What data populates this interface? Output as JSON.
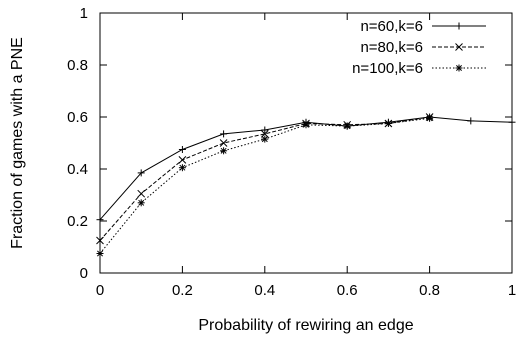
{
  "chart_data": {
    "type": "line",
    "title": "",
    "xlabel": "Probability of rewiring an edge",
    "ylabel": "Fraction of games with a PNE",
    "xlim": [
      0,
      1
    ],
    "ylim": [
      0,
      1
    ],
    "xticks": [
      0,
      0.2,
      0.4,
      0.6,
      0.8,
      1
    ],
    "xtick_labels": [
      "0",
      "0.2",
      "0.4",
      "0.6",
      "0.8",
      "1"
    ],
    "yticks": [
      0,
      0.2,
      0.4,
      0.6,
      0.8,
      1
    ],
    "ytick_labels": [
      "0",
      "0.2",
      "0.4",
      "0.6",
      "0.8",
      "1"
    ],
    "grid": false,
    "legend_position": "top-right",
    "x": [
      0,
      0.1,
      0.2,
      0.3,
      0.4,
      0.5,
      0.6,
      0.7,
      0.8,
      0.9,
      1.0
    ],
    "series": [
      {
        "name": "n=60,k=6",
        "marker": "plus",
        "dash": "solid",
        "color": "#000000",
        "values": [
          0.205,
          0.385,
          0.475,
          0.535,
          0.55,
          0.58,
          0.565,
          0.58,
          0.6,
          0.585,
          0.58
        ]
      },
      {
        "name": "n=80,k=6",
        "marker": "cross",
        "dash": "dashed",
        "color": "#000000",
        "values": [
          0.125,
          0.305,
          0.435,
          0.5,
          0.535,
          0.575,
          0.57,
          0.575,
          0.6,
          null,
          null
        ]
      },
      {
        "name": "n=100,k=6",
        "marker": "star",
        "dash": "dotted",
        "color": "#000000",
        "values": [
          0.075,
          0.27,
          0.405,
          0.47,
          0.515,
          0.57,
          0.565,
          0.575,
          0.595,
          null,
          null
        ]
      }
    ]
  }
}
